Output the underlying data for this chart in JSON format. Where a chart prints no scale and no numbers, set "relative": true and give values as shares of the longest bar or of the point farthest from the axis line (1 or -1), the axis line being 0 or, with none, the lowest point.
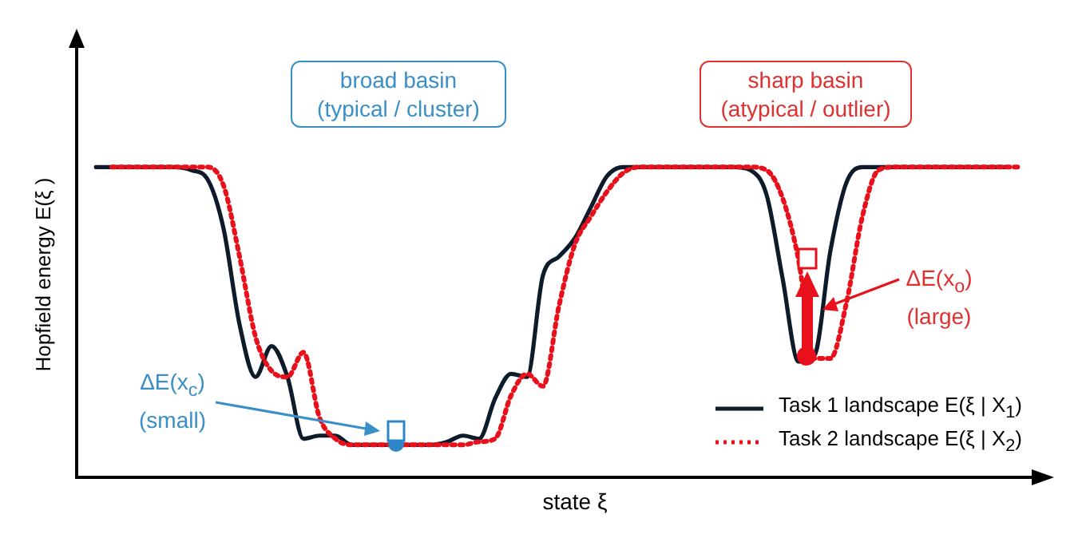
{
  "chart_data": {
    "type": "line",
    "relative": true,
    "xlabel": "state ξ",
    "ylabel": "Hopfield energy E(ξ )",
    "legend": "bottom right",
    "categories": [
      null,
      null,
      null,
      null,
      null,
      null,
      null,
      null,
      null,
      null,
      null,
      null,
      null,
      null,
      null,
      null,
      null,
      null,
      null,
      null,
      null,
      null,
      null,
      null,
      null,
      null,
      null,
      null,
      null,
      null,
      null,
      null,
      null,
      null,
      null,
      null,
      null,
      null,
      null,
      null,
      null,
      null,
      null,
      null,
      null,
      null,
      null,
      null,
      null,
      null,
      null,
      null,
      null,
      null,
      null,
      null,
      null,
      null,
      null
    ],
    "series": [
      {
        "name": "Task 1 landscape E(ξ | X$_{1}$)",
        "color": "#0d1b2a",
        "line_style": "solid",
        "values": [
          1,
          1,
          1,
          1,
          1,
          1,
          0.99,
          0.96,
          0.8,
          0.49,
          0.32,
          0.42,
          0.32,
          0.12,
          0.13,
          0.13,
          0.1,
          0.1,
          0.1,
          0.1,
          0.1,
          0.1,
          0.11,
          0.13,
          0.12,
          0.25,
          0.33,
          0.32,
          0.65,
          0.71,
          0.77,
          0.87,
          0.97,
          1,
          1,
          1,
          1,
          1,
          1,
          1,
          1,
          0.99,
          0.91,
          0.64,
          0.37,
          0.39,
          0.73,
          0.95,
          1,
          1,
          1,
          1,
          1,
          1,
          1,
          1,
          1,
          1,
          null
        ]
      },
      {
        "name": "Task 2 landscape E(ξ | X$_{2}$)",
        "color": "#e8101a",
        "line_style": "dotted",
        "values": [
          null,
          1,
          1,
          1,
          1,
          1,
          1,
          1,
          0.94,
          0.71,
          0.45,
          0.34,
          0.32,
          0.4,
          0.19,
          0.12,
          0.1,
          0.1,
          0.1,
          0.1,
          0.1,
          0.1,
          0.1,
          0.1,
          0.11,
          0.12,
          0.26,
          0.33,
          0.29,
          0.55,
          0.75,
          0.84,
          0.92,
          0.98,
          1,
          1,
          1,
          1,
          1,
          1,
          1,
          1,
          0.99,
          0.9,
          0.7,
          0.38,
          0.38,
          0.56,
          0.84,
          0.99,
          1,
          1,
          1,
          1,
          1,
          1,
          1,
          1,
          1
        ]
      }
    ],
    "annotations": [
      "broad basin\n(typical / cluster)",
      "sharp basin\n(atypical / outlier)",
      "ΔE(x$_{c}$)\n(small)",
      "ΔE(x$_{o}$)\n(large)"
    ]
  }
}
